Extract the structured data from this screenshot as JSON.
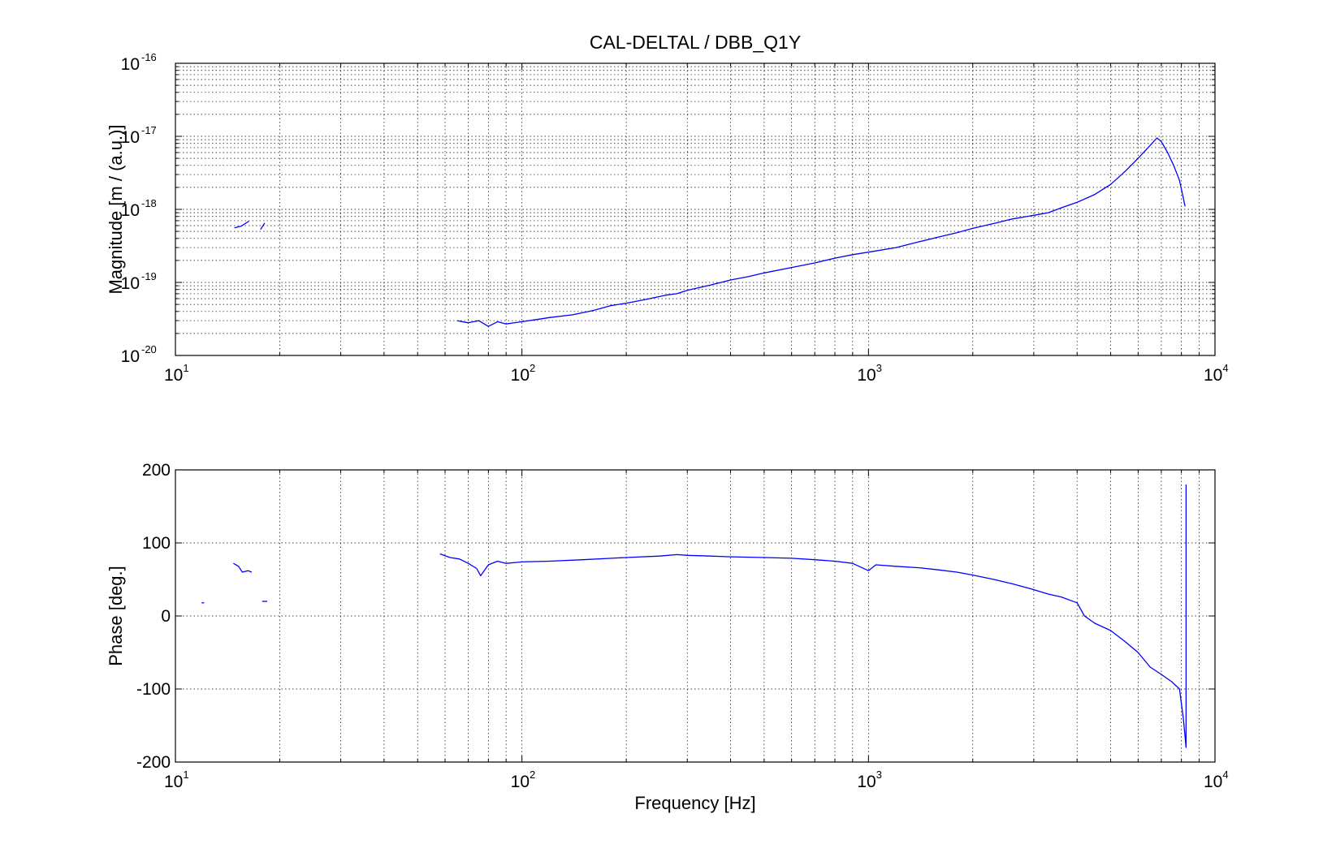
{
  "chart_data": [
    {
      "type": "line",
      "title": "CAL-DELTAL / DBB_Q1Y",
      "xlabel": "",
      "ylabel": "Magnitude [m / (a.u.)]",
      "xscale": "log",
      "yscale": "log",
      "xlim": [
        10,
        10000
      ],
      "ylim": [
        1e-20,
        1e-16
      ],
      "grid": true,
      "x_ticks": [
        {
          "base": "10",
          "exp": "1"
        },
        {
          "base": "10",
          "exp": "2"
        },
        {
          "base": "10",
          "exp": "3"
        },
        {
          "base": "10",
          "exp": "4"
        }
      ],
      "y_ticks": [
        {
          "base": "10",
          "exp": "-20"
        },
        {
          "base": "10",
          "exp": "-19"
        },
        {
          "base": "10",
          "exp": "-18"
        },
        {
          "base": "10",
          "exp": "-17"
        },
        {
          "base": "10",
          "exp": "-16"
        }
      ],
      "series": [
        {
          "color": "#0000ff",
          "segments": [
            [
              [
                14.8,
                5.6e-19
              ],
              [
                15.5,
                5.9e-19
              ],
              [
                16.3,
                6.9e-19
              ]
            ],
            [
              [
                17.6,
                5.3e-19
              ],
              [
                18.1,
                6.5e-19
              ]
            ],
            [
              [
                65,
                3e-20
              ],
              [
                70,
                2.8e-20
              ],
              [
                75,
                3e-20
              ],
              [
                80,
                2.5e-20
              ],
              [
                85,
                2.9e-20
              ],
              [
                90,
                2.7e-20
              ],
              [
                100,
                2.9e-20
              ],
              [
                110,
                3.1e-20
              ],
              [
                120,
                3.3e-20
              ],
              [
                140,
                3.6e-20
              ],
              [
                160,
                4.1e-20
              ],
              [
                180,
                4.8e-20
              ],
              [
                200,
                5.2e-20
              ],
              [
                230,
                5.9e-20
              ],
              [
                260,
                6.7e-20
              ],
              [
                280,
                7e-20
              ],
              [
                300,
                7.8e-20
              ],
              [
                350,
                9.2e-20
              ],
              [
                400,
                1.08e-19
              ],
              [
                450,
                1.2e-19
              ],
              [
                500,
                1.35e-19
              ],
              [
                600,
                1.6e-19
              ],
              [
                700,
                1.85e-19
              ],
              [
                800,
                2.15e-19
              ],
              [
                900,
                2.4e-19
              ],
              [
                1000,
                2.6e-19
              ],
              [
                1200,
                3e-19
              ],
              [
                1400,
                3.6e-19
              ],
              [
                1600,
                4.2e-19
              ],
              [
                1800,
                4.8e-19
              ],
              [
                2000,
                5.5e-19
              ],
              [
                2300,
                6.4e-19
              ],
              [
                2600,
                7.4e-19
              ],
              [
                3000,
                8.3e-19
              ],
              [
                3300,
                9e-19
              ],
              [
                3600,
                1.05e-18
              ],
              [
                4000,
                1.25e-18
              ],
              [
                4500,
                1.6e-18
              ],
              [
                5000,
                2.2e-18
              ],
              [
                5500,
                3.3e-18
              ],
              [
                6000,
                5e-18
              ],
              [
                6500,
                7.5e-18
              ],
              [
                6800,
                9.5e-18
              ],
              [
                7000,
                8.5e-18
              ],
              [
                7300,
                6e-18
              ],
              [
                7600,
                4e-18
              ],
              [
                7900,
                2.5e-18
              ],
              [
                8200,
                1.1e-18
              ]
            ]
          ]
        }
      ]
    },
    {
      "type": "line",
      "title": "",
      "xlabel": "Frequency [Hz]",
      "ylabel": "Phase [deg.]",
      "xscale": "log",
      "yscale": "linear",
      "xlim": [
        10,
        10000
      ],
      "ylim": [
        -200,
        200
      ],
      "grid": true,
      "x_ticks": [
        {
          "base": "10",
          "exp": "1"
        },
        {
          "base": "10",
          "exp": "2"
        },
        {
          "base": "10",
          "exp": "3"
        },
        {
          "base": "10",
          "exp": "4"
        }
      ],
      "y_ticks": [
        "-200",
        "-100",
        "0",
        "100",
        "200"
      ],
      "series": [
        {
          "color": "#0000ff",
          "segments": [
            [
              [
                11.9,
                18
              ],
              [
                12.1,
                18
              ]
            ],
            [
              [
                14.7,
                72
              ],
              [
                15.2,
                68
              ],
              [
                15.6,
                60
              ],
              [
                16.2,
                62
              ],
              [
                16.6,
                60
              ]
            ],
            [
              [
                17.8,
                20
              ],
              [
                18.4,
                20
              ]
            ],
            [
              [
                58,
                85
              ],
              [
                62,
                80
              ],
              [
                66,
                78
              ],
              [
                70,
                72
              ],
              [
                74,
                65
              ],
              [
                76,
                55
              ],
              [
                80,
                70
              ],
              [
                85,
                75
              ],
              [
                90,
                72
              ],
              [
                100,
                74
              ],
              [
                120,
                75
              ],
              [
                150,
                77
              ],
              [
                200,
                80
              ],
              [
                250,
                82
              ],
              [
                280,
                84
              ],
              [
                300,
                83
              ],
              [
                350,
                82
              ],
              [
                400,
                81
              ],
              [
                500,
                80
              ],
              [
                600,
                79
              ],
              [
                700,
                77
              ],
              [
                800,
                75
              ],
              [
                900,
                72
              ],
              [
                1000,
                62
              ],
              [
                1050,
                70
              ],
              [
                1200,
                68
              ],
              [
                1400,
                66
              ],
              [
                1600,
                63
              ],
              [
                1800,
                60
              ],
              [
                2000,
                56
              ],
              [
                2300,
                50
              ],
              [
                2600,
                44
              ],
              [
                3000,
                36
              ],
              [
                3300,
                30
              ],
              [
                3600,
                26
              ],
              [
                4000,
                18
              ],
              [
                4200,
                0
              ],
              [
                4500,
                -10
              ],
              [
                5000,
                -20
              ],
              [
                5500,
                -35
              ],
              [
                6000,
                -50
              ],
              [
                6500,
                -70
              ],
              [
                7000,
                -80
              ],
              [
                7500,
                -90
              ],
              [
                7900,
                -100
              ],
              [
                8100,
                -140
              ],
              [
                8250,
                -180
              ],
              [
                8250,
                180
              ]
            ]
          ]
        }
      ]
    }
  ]
}
